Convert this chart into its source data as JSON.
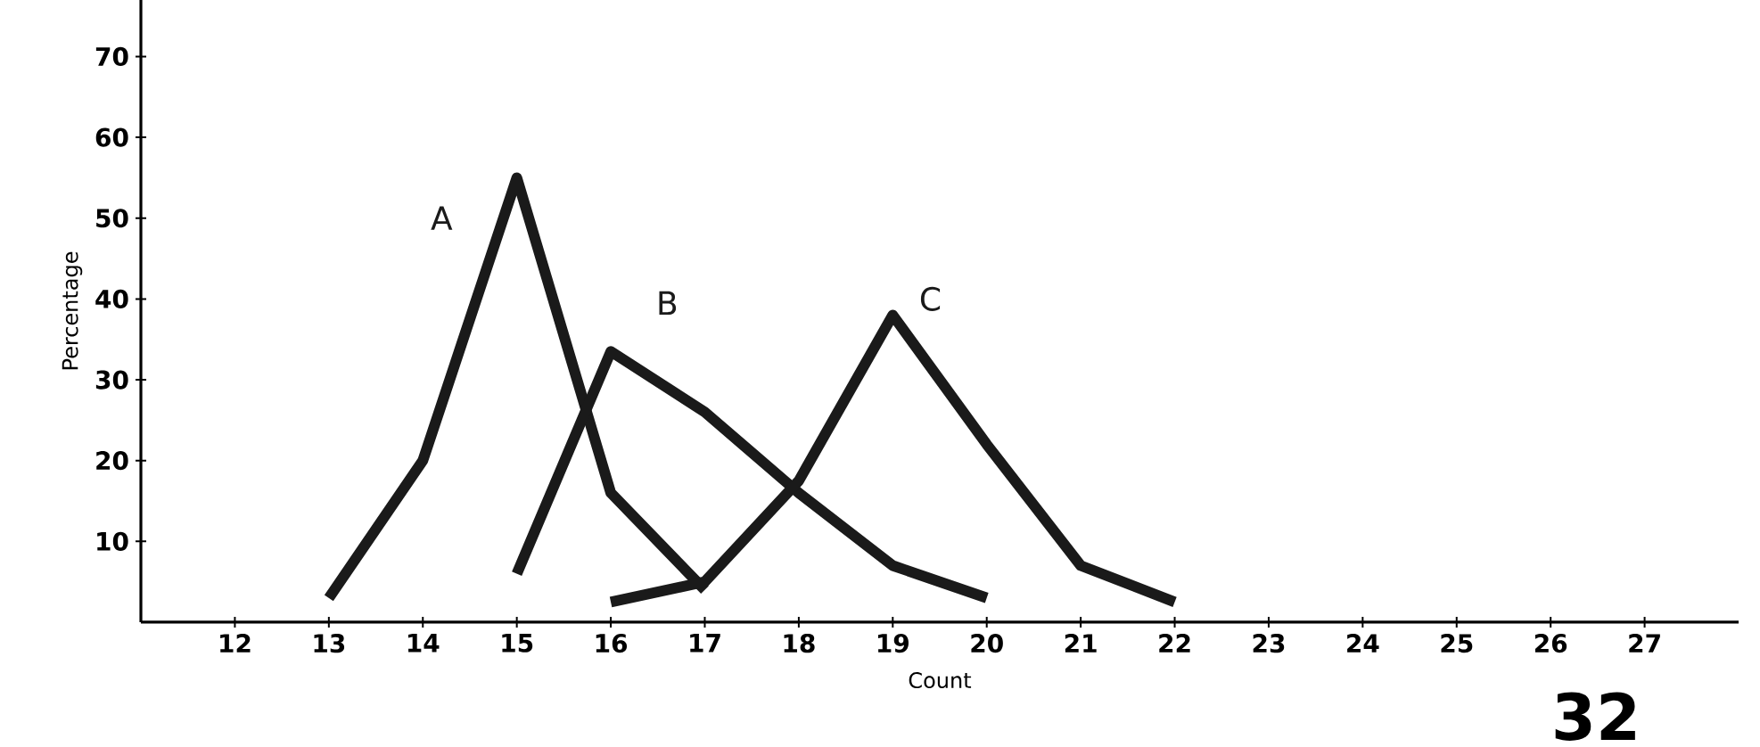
{
  "chart_data": {
    "type": "line",
    "xlabel": "Count",
    "ylabel": "Percentage",
    "xlim": [
      11,
      28
    ],
    "ylim": [
      0,
      77
    ],
    "xticks": [
      12,
      13,
      14,
      15,
      16,
      17,
      18,
      19,
      20,
      21,
      22,
      23,
      24,
      25,
      26,
      27
    ],
    "yticks": [
      10,
      20,
      30,
      40,
      50,
      60,
      70
    ],
    "series": [
      {
        "name": "A",
        "color": "#1a1a1a",
        "x": [
          13,
          14,
          15,
          16,
          17
        ],
        "values": [
          3,
          20,
          55,
          16,
          4
        ]
      },
      {
        "name": "B",
        "color": "#1a1a1a",
        "x": [
          15,
          16,
          17,
          18,
          19,
          20
        ],
        "values": [
          6,
          33.5,
          26,
          16,
          7,
          3
        ]
      },
      {
        "name": "C",
        "color": "#1a1a1a",
        "x": [
          16,
          17,
          18,
          19,
          20,
          21,
          22
        ],
        "values": [
          2.5,
          5,
          17.5,
          38,
          22,
          7,
          2.5
        ]
      }
    ],
    "annotations": [
      "32"
    ]
  }
}
